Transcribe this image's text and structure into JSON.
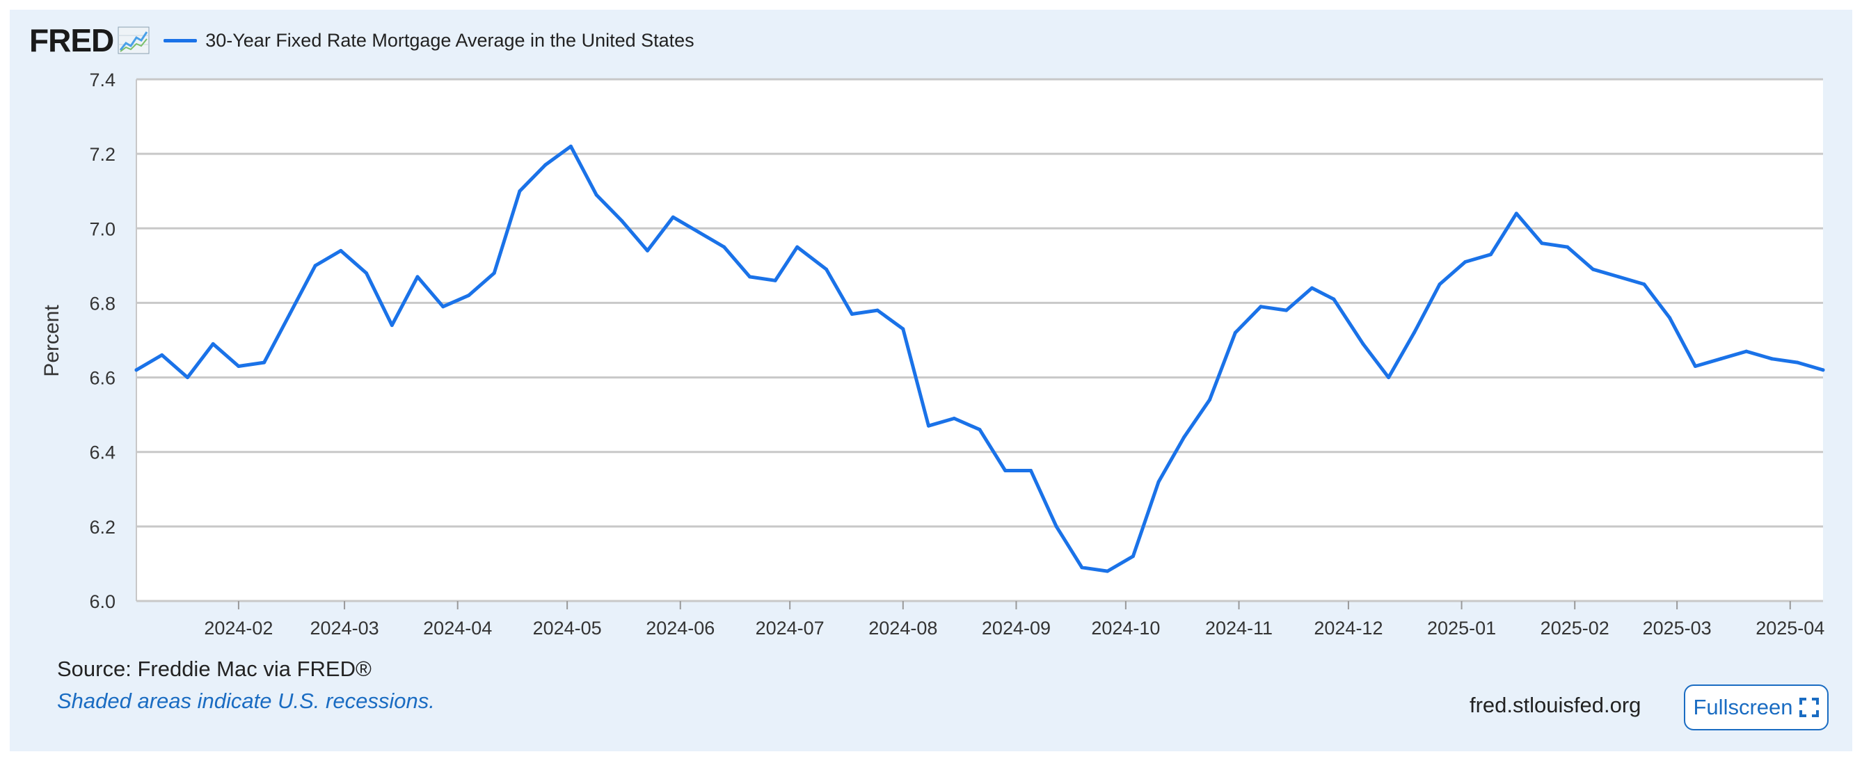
{
  "header": {
    "logo_text": "FRED",
    "logo_icon": "chart-line-icon",
    "legend_label": "30-Year Fixed Rate Mortgage Average in the United States"
  },
  "colors": {
    "series": "#1a72e8",
    "panel_background": "#e8f1fa",
    "plot_background": "#ffffff",
    "grid": "#c8c8c8",
    "link": "#1a6cc2"
  },
  "chart_data": {
    "type": "line",
    "title": "",
    "xlabel": "",
    "ylabel": "Percent",
    "ylim": [
      6.0,
      7.4
    ],
    "yticks": [
      6.0,
      6.2,
      6.4,
      6.6,
      6.8,
      7.0,
      7.2,
      7.4
    ],
    "ytick_labels": [
      "6.0",
      "6.2",
      "6.4",
      "6.6",
      "6.8",
      "7.0",
      "7.2",
      "7.4"
    ],
    "xlim": [
      "2024-01-04",
      "2025-04-10"
    ],
    "xticks": [
      "2024-02-01",
      "2024-03-01",
      "2024-04-01",
      "2024-05-01",
      "2024-06-01",
      "2024-07-01",
      "2024-08-01",
      "2024-09-01",
      "2024-10-01",
      "2024-11-01",
      "2024-12-01",
      "2025-01-01",
      "2025-02-01",
      "2025-03-01",
      "2025-04-01"
    ],
    "xtick_labels": [
      "2024-02",
      "2024-03",
      "2024-04",
      "2024-05",
      "2024-06",
      "2024-07",
      "2024-08",
      "2024-09",
      "2024-10",
      "2024-11",
      "2024-12",
      "2025-01",
      "2025-02",
      "2025-03",
      "2025-04"
    ],
    "grid": "horizontal",
    "legend": "top-left",
    "series": [
      {
        "name": "30-Year Fixed Rate Mortgage Average in the United States",
        "x": [
          "2024-01-04",
          "2024-01-11",
          "2024-01-18",
          "2024-01-25",
          "2024-02-01",
          "2024-02-08",
          "2024-02-15",
          "2024-02-22",
          "2024-02-29",
          "2024-03-07",
          "2024-03-14",
          "2024-03-21",
          "2024-03-28",
          "2024-04-04",
          "2024-04-11",
          "2024-04-18",
          "2024-04-25",
          "2024-05-02",
          "2024-05-09",
          "2024-05-16",
          "2024-05-23",
          "2024-05-30",
          "2024-06-06",
          "2024-06-13",
          "2024-06-20",
          "2024-06-27",
          "2024-07-03",
          "2024-07-11",
          "2024-07-18",
          "2024-07-25",
          "2024-08-01",
          "2024-08-08",
          "2024-08-15",
          "2024-08-22",
          "2024-08-29",
          "2024-09-05",
          "2024-09-12",
          "2024-09-19",
          "2024-09-26",
          "2024-10-03",
          "2024-10-10",
          "2024-10-17",
          "2024-10-24",
          "2024-10-31",
          "2024-11-07",
          "2024-11-14",
          "2024-11-21",
          "2024-11-27",
          "2024-12-05",
          "2024-12-12",
          "2024-12-19",
          "2024-12-26",
          "2025-01-02",
          "2025-01-09",
          "2025-01-16",
          "2025-01-23",
          "2025-01-30",
          "2025-02-06",
          "2025-02-13",
          "2025-02-20",
          "2025-02-27",
          "2025-03-06",
          "2025-03-13",
          "2025-03-20",
          "2025-03-27",
          "2025-04-03",
          "2025-04-10"
        ],
        "values": [
          6.62,
          6.66,
          6.6,
          6.69,
          6.63,
          6.64,
          6.77,
          6.9,
          6.94,
          6.88,
          6.74,
          6.87,
          6.79,
          6.82,
          6.88,
          7.1,
          7.17,
          7.22,
          7.09,
          7.02,
          6.94,
          7.03,
          6.99,
          6.95,
          6.87,
          6.86,
          6.95,
          6.89,
          6.77,
          6.78,
          6.73,
          6.47,
          6.49,
          6.46,
          6.35,
          6.35,
          6.2,
          6.09,
          6.08,
          6.12,
          6.32,
          6.44,
          6.54,
          6.72,
          6.79,
          6.78,
          6.84,
          6.81,
          6.69,
          6.6,
          6.72,
          6.85,
          6.91,
          6.93,
          7.04,
          6.96,
          6.95,
          6.89,
          6.87,
          6.85,
          6.76,
          6.63,
          6.65,
          6.67,
          6.65,
          6.64,
          6.62
        ]
      }
    ]
  },
  "footer": {
    "source": "Source: Freddie Mac via FRED®",
    "recession_note": "Shaded areas indicate U.S. recessions.",
    "site_url": "fred.stlouisfed.org",
    "fullscreen_label": "Fullscreen",
    "fullscreen_icon": "expand-icon"
  }
}
